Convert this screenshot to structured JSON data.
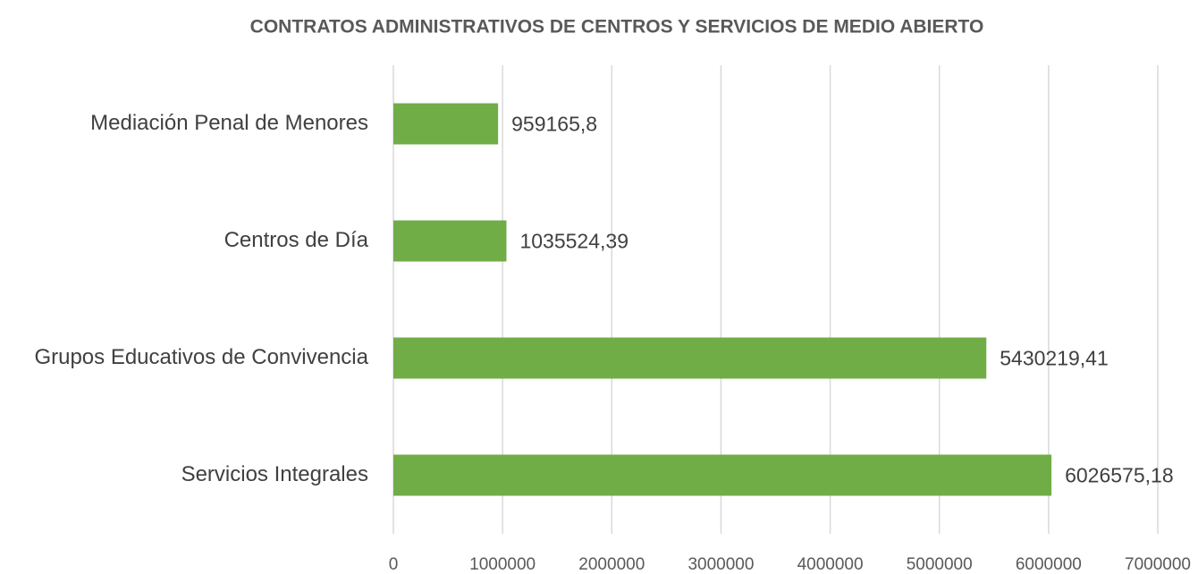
{
  "chart_data": {
    "type": "barh",
    "title": "CONTRATOS ADMINISTRATIVOS DE CENTROS Y SERVICIOS DE MEDIO ABIERTO",
    "categories": [
      "Mediación Penal de Menores",
      "Centros de Día",
      "Grupos Educativos de Convivencia",
      "Servicios Integrales"
    ],
    "values": [
      959165.8,
      1035524.39,
      5430219.41,
      6026575.18
    ],
    "value_labels": [
      "959165,8",
      "1035524,39",
      "5430219,41",
      "6026575,18"
    ],
    "color": "#70ad47",
    "xlim": [
      0,
      7000000
    ],
    "xticks": [
      0,
      1000000,
      2000000,
      3000000,
      4000000,
      5000000,
      6000000,
      7000000
    ],
    "grid": true
  }
}
